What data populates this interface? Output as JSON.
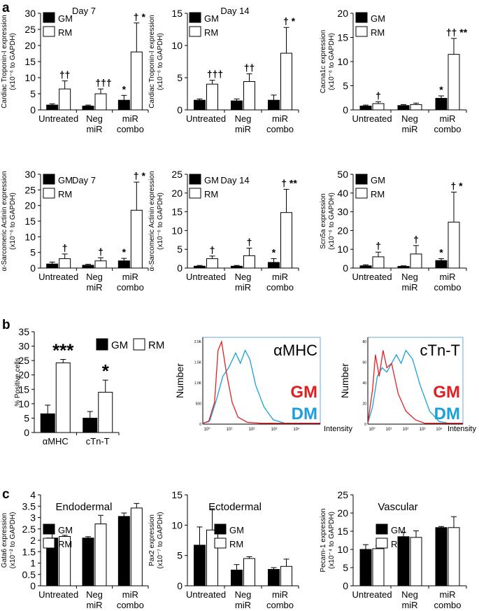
{
  "panel_labels": [
    "a",
    "b",
    "c"
  ],
  "colors": {
    "gm_fill": "#000000",
    "rm_fill": "#ffffff",
    "flow_gm": "#e02020",
    "flow_dm": "#19a0dc",
    "axis": "#000000",
    "flow_frame": "#6aa8d8"
  },
  "legend": {
    "gm": "GM",
    "rm": "RM"
  },
  "panel_b_flow": {
    "ylabel": "Number",
    "xlabel": "Intensity",
    "x_ticks": [
      "10⁰",
      "10¹",
      "10²",
      "10³",
      "10⁴"
    ],
    "plots": [
      {
        "title": "αMHC",
        "y_ticks": [
          "0",
          "500",
          "1.0K",
          "1.5K",
          "2.0K"
        ],
        "legend": [
          "GM",
          "DM"
        ]
      },
      {
        "title": "cTn-T",
        "y_ticks": [
          "0",
          "20",
          "40",
          "60",
          "80"
        ],
        "legend": [
          "GM",
          "DM"
        ]
      }
    ]
  },
  "chart_data": [
    {
      "id": "a1",
      "type": "bar",
      "title": "Day 7",
      "ylabel": [
        "Cardiac Troponin-I expression",
        "(x10⁻⁶ to GAPDH)"
      ],
      "categories": [
        [
          "Untreated"
        ],
        [
          "Neg",
          "miR"
        ],
        [
          "miR",
          "combo"
        ]
      ],
      "ylim": [
        0,
        30
      ],
      "yticks": [
        0,
        5,
        10,
        15,
        20,
        25,
        30
      ],
      "series": [
        {
          "name": "GM",
          "values": [
            1.5,
            1.2,
            3.0
          ],
          "errors": [
            0.4,
            0.3,
            1.5
          ],
          "marks": [
            "",
            "",
            "*"
          ]
        },
        {
          "name": "RM",
          "values": [
            6.5,
            5.0,
            18.0
          ],
          "errors": [
            2.5,
            1.5,
            9.0
          ],
          "marks": [
            "††",
            "†††",
            "† *"
          ]
        }
      ]
    },
    {
      "id": "a2",
      "type": "bar",
      "title": "Day 14",
      "ylabel": [
        "Cardiac Troponin-I expression",
        "(x10⁻⁶ to GAPDH)"
      ],
      "categories": [
        [
          "Untreated"
        ],
        [
          "Neg",
          "miR"
        ],
        [
          "miR",
          "combo"
        ]
      ],
      "ylim": [
        0,
        15
      ],
      "yticks": [
        0,
        5,
        10,
        15
      ],
      "series": [
        {
          "name": "GM",
          "values": [
            1.5,
            1.4,
            1.5
          ],
          "errors": [
            0.2,
            0.3,
            0.8
          ],
          "marks": [
            "",
            "",
            ""
          ]
        },
        {
          "name": "RM",
          "values": [
            4.0,
            4.4,
            8.8
          ],
          "errors": [
            0.6,
            1.2,
            4.0
          ],
          "marks": [
            "†††",
            "††",
            "† *"
          ]
        }
      ]
    },
    {
      "id": "a3",
      "type": "bar",
      "title": "",
      "ylabel": [
        "Cacna1c expression",
        "(x10⁻⁶ to GAPDH)"
      ],
      "categories": [
        [
          "Untreated"
        ],
        [
          "Neg",
          "miR"
        ],
        [
          "miR",
          "combo"
        ]
      ],
      "ylim": [
        0,
        20
      ],
      "yticks": [
        0,
        5,
        10,
        15,
        20
      ],
      "series": [
        {
          "name": "GM",
          "values": [
            0.8,
            0.9,
            2.4
          ],
          "errors": [
            0.2,
            0.2,
            0.5
          ],
          "marks": [
            "",
            "",
            "*"
          ]
        },
        {
          "name": "RM",
          "values": [
            1.3,
            1.1,
            11.5
          ],
          "errors": [
            0.4,
            0.3,
            3.3
          ],
          "marks": [
            "†",
            "",
            "†† **"
          ]
        }
      ]
    },
    {
      "id": "a4",
      "type": "bar",
      "title": "Day 7",
      "ylabel": [
        "α-Sarcomeric Actinin expression",
        "(x10⁻⁶ to GAPDH)"
      ],
      "categories": [
        [
          "Untreated"
        ],
        [
          "Neg",
          "miR"
        ],
        [
          "miR",
          "combo"
        ]
      ],
      "ylim": [
        0,
        30
      ],
      "yticks": [
        0,
        5,
        10,
        15,
        20,
        25,
        30
      ],
      "series": [
        {
          "name": "GM",
          "values": [
            1.3,
            0.9,
            2.3
          ],
          "errors": [
            0.6,
            0.3,
            0.8
          ],
          "marks": [
            "",
            "",
            "*"
          ]
        },
        {
          "name": "RM",
          "values": [
            3.0,
            2.3,
            18.5
          ],
          "errors": [
            1.5,
            1.0,
            9.0
          ],
          "marks": [
            "†",
            "†",
            "† *"
          ]
        }
      ]
    },
    {
      "id": "a5",
      "type": "bar",
      "title": "Day 14",
      "ylabel": [
        "α-Sarcomeric Actinin expression",
        "(x10⁻⁶ to GAPDH)"
      ],
      "categories": [
        [
          "Untreated"
        ],
        [
          "Neg",
          "miR"
        ],
        [
          "miR",
          "combo"
        ]
      ],
      "ylim": [
        0,
        25
      ],
      "yticks": [
        0,
        5,
        10,
        15,
        20,
        25
      ],
      "series": [
        {
          "name": "GM",
          "values": [
            0.5,
            0.5,
            1.5
          ],
          "errors": [
            0.2,
            0.2,
            1.0
          ],
          "marks": [
            "",
            "",
            "*"
          ]
        },
        {
          "name": "RM",
          "values": [
            2.5,
            3.3,
            14.8
          ],
          "errors": [
            0.7,
            2.0,
            6.2
          ],
          "marks": [
            "†",
            "†",
            "† **"
          ]
        }
      ]
    },
    {
      "id": "a6",
      "type": "bar",
      "title": "",
      "ylabel": [
        "Scn5a expression",
        "(x10⁻⁶ to GAPDH)"
      ],
      "categories": [
        [
          "Untreated"
        ],
        [
          "Neg",
          "miR"
        ],
        [
          "miR",
          "combo"
        ]
      ],
      "ylim": [
        0,
        50
      ],
      "yticks": [
        0,
        10,
        20,
        30,
        40,
        50
      ],
      "series": [
        {
          "name": "GM",
          "values": [
            1.2,
            0.9,
            4.0
          ],
          "errors": [
            0.5,
            0.3,
            1.0
          ],
          "marks": [
            "",
            "",
            "*"
          ]
        },
        {
          "name": "RM",
          "values": [
            6.0,
            7.5,
            24.5
          ],
          "errors": [
            2.5,
            4.5,
            16.0
          ],
          "marks": [
            "†",
            "†",
            "† *"
          ]
        }
      ]
    },
    {
      "id": "b1",
      "type": "bar",
      "title": "",
      "ylabel": [
        "% Positive cells"
      ],
      "categories": [
        [
          "αMHC"
        ],
        [
          "cTn-T"
        ]
      ],
      "ylim": [
        0,
        35
      ],
      "yticks": [
        0,
        5,
        10,
        15,
        20,
        25,
        30,
        35
      ],
      "series": [
        {
          "name": "GM",
          "values": [
            6.5,
            5.0
          ],
          "errors": [
            3.0,
            2.3
          ],
          "marks": [
            "",
            ""
          ]
        },
        {
          "name": "RM",
          "values": [
            24.2,
            14.0
          ],
          "errors": [
            1.2,
            4.2
          ],
          "marks": [
            "***",
            "*"
          ]
        }
      ]
    },
    {
      "id": "c1",
      "type": "bar",
      "title": "Endodermal",
      "ylabel": [
        "Gata6 expression",
        "(x10⁻² to GAPDH)"
      ],
      "categories": [
        [
          "Untreated"
        ],
        [
          "Neg",
          "miR"
        ],
        [
          "miR",
          "combo"
        ]
      ],
      "ylim": [
        0,
        4
      ],
      "yticks": [
        0,
        0.5,
        1,
        1.5,
        2,
        2.5,
        3,
        3.5,
        4
      ],
      "series": [
        {
          "name": "GM",
          "values": [
            2.1,
            2.1,
            3.05
          ],
          "errors": [
            0.2,
            0.06,
            0.15
          ],
          "marks": [
            "",
            "",
            ""
          ]
        },
        {
          "name": "RM",
          "values": [
            2.17,
            2.72,
            3.42
          ],
          "errors": [
            0.05,
            0.38,
            0.2
          ],
          "marks": [
            "",
            "",
            ""
          ]
        }
      ]
    },
    {
      "id": "c2",
      "type": "bar",
      "title": "Ectodermal",
      "ylabel": [
        "Pax2 expression",
        "(x10⁻⁷ to GAPDH)"
      ],
      "categories": [
        [
          "Untreated"
        ],
        [
          "Neg",
          "miR"
        ],
        [
          "miR",
          "combo"
        ]
      ],
      "ylim": [
        0,
        15
      ],
      "yticks": [
        0,
        5,
        10,
        15
      ],
      "series": [
        {
          "name": "GM",
          "values": [
            6.7,
            2.6,
            2.7
          ],
          "errors": [
            3.0,
            0.9,
            0.3
          ],
          "marks": [
            "",
            "",
            ""
          ]
        },
        {
          "name": "RM",
          "values": [
            9.2,
            4.5,
            3.2
          ],
          "errors": [
            3.5,
            0.3,
            1.2
          ],
          "marks": [
            "",
            "",
            ""
          ]
        }
      ]
    },
    {
      "id": "c3",
      "type": "bar",
      "title": "Vascular",
      "ylabel": [
        "Pecam-1 expression",
        "(x10⁻⁴ to GAPDH)"
      ],
      "categories": [
        [
          "Untreated"
        ],
        [
          "Neg",
          "miR"
        ],
        [
          "miR",
          "combo"
        ]
      ],
      "ylim": [
        0,
        25
      ],
      "yticks": [
        0,
        5,
        10,
        15,
        20,
        25
      ],
      "series": [
        {
          "name": "GM",
          "values": [
            10.0,
            13.5,
            16.0
          ],
          "errors": [
            1.3,
            1.2,
            0.3
          ],
          "marks": [
            "",
            "",
            ""
          ]
        },
        {
          "name": "RM",
          "values": [
            10.2,
            13.3,
            16.0
          ],
          "errors": [
            0.8,
            1.8,
            3.0
          ],
          "marks": [
            "",
            "",
            ""
          ]
        }
      ]
    }
  ]
}
